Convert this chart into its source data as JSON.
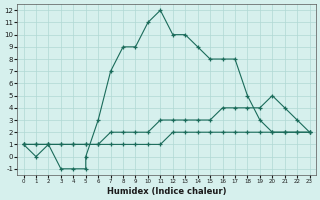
{
  "xlabel": "Humidex (Indice chaleur)",
  "ylabel": "",
  "xlim": [
    -0.5,
    23.5
  ],
  "ylim": [
    -1.5,
    12.5
  ],
  "xticks": [
    0,
    1,
    2,
    3,
    4,
    5,
    6,
    7,
    8,
    9,
    10,
    11,
    12,
    13,
    14,
    15,
    16,
    17,
    18,
    19,
    20,
    21,
    22,
    23
  ],
  "yticks": [
    -1,
    0,
    1,
    2,
    3,
    4,
    5,
    6,
    7,
    8,
    9,
    10,
    11,
    12
  ],
  "background_color": "#d6f0ed",
  "grid_color": "#b0d8d4",
  "line_color": "#1a6b5a",
  "line1_x": [
    0,
    1,
    2,
    3,
    4,
    5,
    5,
    6,
    7,
    8,
    9,
    10,
    11,
    12,
    13,
    14,
    15,
    16,
    17,
    18,
    19,
    20,
    21,
    22,
    23
  ],
  "line1_y": [
    1,
    0,
    1,
    -1,
    -1,
    -1,
    0,
    3,
    7,
    9,
    9,
    11,
    12,
    10,
    10,
    9,
    8,
    8,
    8,
    5,
    3,
    2,
    2,
    2,
    2
  ],
  "line2_x": [
    0,
    1,
    2,
    3,
    4,
    5,
    6,
    7,
    8,
    9,
    10,
    11,
    12,
    13,
    14,
    15,
    16,
    17,
    18,
    19,
    20,
    21,
    22,
    23
  ],
  "line2_y": [
    1,
    1,
    1,
    1,
    1,
    1,
    1,
    2,
    2,
    2,
    2,
    3,
    3,
    3,
    3,
    3,
    4,
    4,
    4,
    4,
    5,
    4,
    3,
    2
  ],
  "line3_x": [
    0,
    1,
    2,
    3,
    4,
    5,
    6,
    7,
    8,
    9,
    10,
    11,
    12,
    13,
    14,
    15,
    16,
    17,
    18,
    19,
    20,
    21,
    22,
    23
  ],
  "line3_y": [
    1,
    1,
    1,
    1,
    1,
    1,
    1,
    1,
    1,
    1,
    1,
    1,
    2,
    2,
    2,
    2,
    2,
    2,
    2,
    2,
    2,
    2,
    2,
    2
  ]
}
